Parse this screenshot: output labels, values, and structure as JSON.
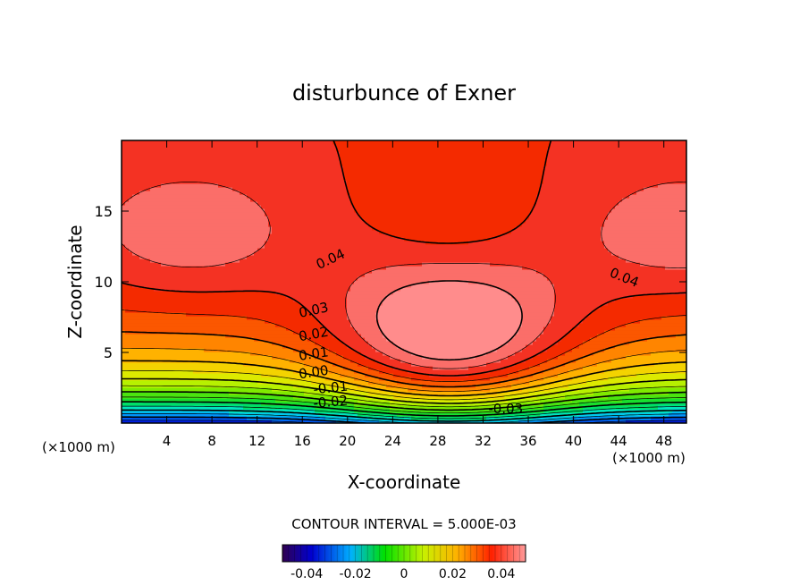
{
  "chart_data": {
    "type": "heatmap",
    "title": "disturbunce of Exner",
    "xlabel": "X-coordinate",
    "ylabel": "Z-coordinate",
    "x_unit_label": "(×1000 m)",
    "x_unit_label_right": "(×1000 m)",
    "x_ticks": [
      "4",
      "8",
      "12",
      "16",
      "20",
      "24",
      "28",
      "32",
      "36",
      "40",
      "44",
      "48"
    ],
    "y_ticks": [
      "5",
      "10",
      "15"
    ],
    "xlim": [
      0,
      50
    ],
    "ylim": [
      0,
      20
    ],
    "contour_interval_text": "CONTOUR INTERVAL = 5.000E-03",
    "contour_labels": [
      "0.04",
      "0.04",
      "0.03",
      "0.02",
      "0.01",
      "0.00",
      "-0.01",
      "-0.02",
      "-0.03"
    ],
    "colorbar": {
      "range": [
        -0.05,
        0.05
      ],
      "tick_labels": [
        "-0.04",
        "-0.02",
        "0",
        "0.02",
        "0.04"
      ]
    },
    "grid": false,
    "legend": "none"
  }
}
